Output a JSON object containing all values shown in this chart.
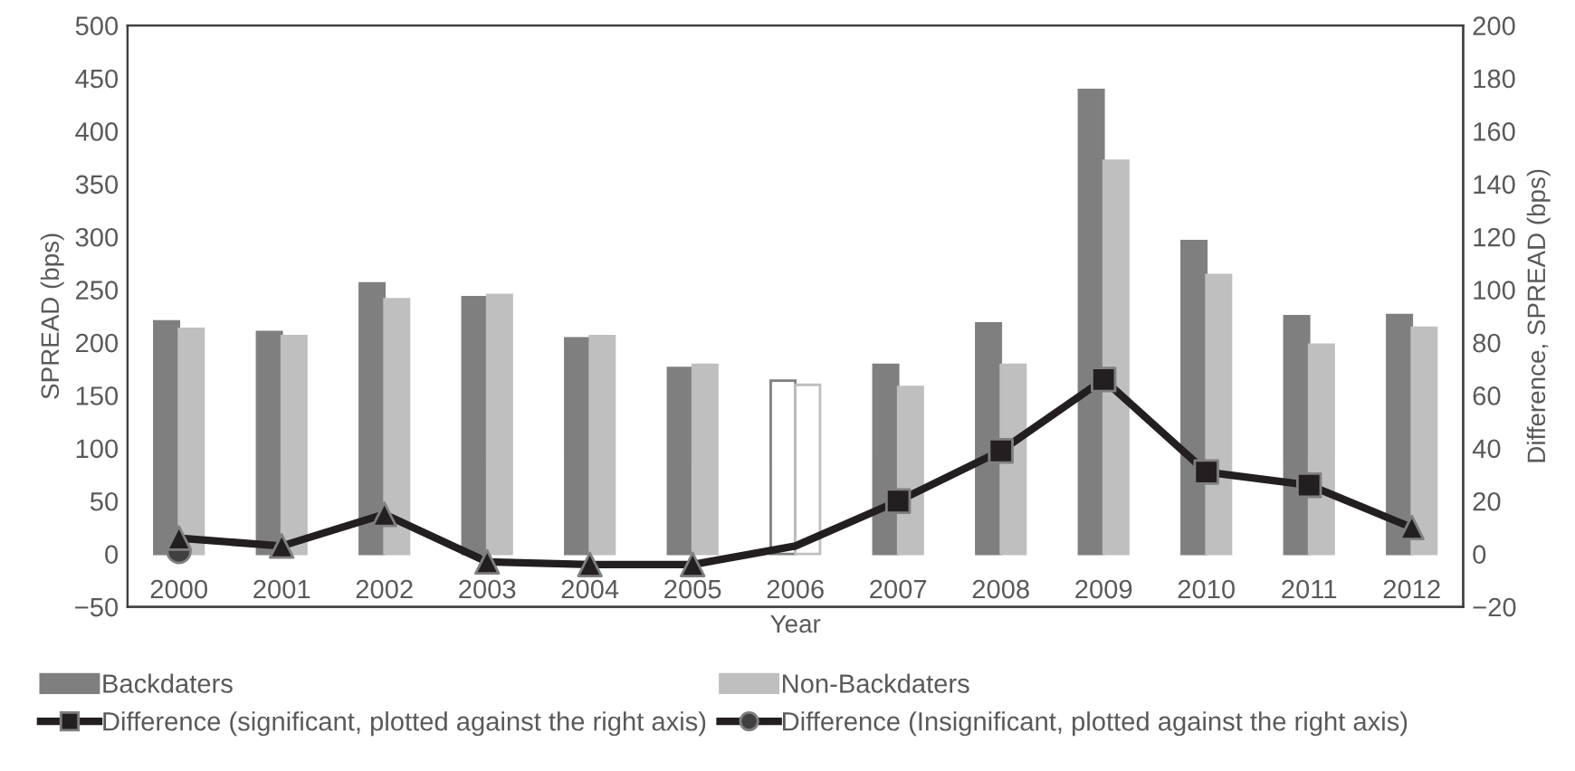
{
  "chart_data": {
    "type": "bar",
    "xlabel": "Year",
    "ylabel": "SPREAD (bps)",
    "y2label": "Difference, SPREAD (bps)",
    "categories": [
      "2000",
      "2001",
      "2002",
      "2003",
      "2004",
      "2005",
      "2006",
      "2007",
      "2008",
      "2009",
      "2010",
      "2011",
      "2012"
    ],
    "series": [
      {
        "name": "Backdaters",
        "color": "#7f7f7f",
        "colors": [
          "#7f7f7f",
          "#7f7f7f",
          "#7f7f7f",
          "#7f7f7f",
          "#7f7f7f",
          "#7f7f7f",
          "#ffffff",
          "#7f7f7f",
          "#7f7f7f",
          "#7f7f7f",
          "#7f7f7f",
          "#7f7f7f",
          "#7f7f7f"
        ],
        "values": [
          220,
          210,
          256,
          243,
          204,
          176,
          164,
          179,
          218,
          439,
          296,
          225,
          226
        ]
      },
      {
        "name": "Non-Backdaters",
        "color": "#bfbfbf",
        "colors": [
          "#bfbfbf",
          "#bfbfbf",
          "#bfbfbf",
          "#bfbfbf",
          "#bfbfbf",
          "#bfbfbf",
          "#ffffff",
          "#bfbfbf",
          "#bfbfbf",
          "#bfbfbf",
          "#bfbfbf",
          "#bfbfbf",
          "#bfbfbf"
        ],
        "values": [
          213,
          206,
          241,
          245,
          206,
          179,
          160,
          158,
          179,
          372,
          264,
          198,
          214
        ]
      },
      {
        "type": "line",
        "axis": "y2",
        "color": "#231f20",
        "marker": "none",
        "values": [
          6,
          3,
          15,
          -3,
          -4,
          -4,
          3,
          20,
          39,
          66,
          31,
          26,
          10
        ]
      },
      {
        "name": "Difference (Insignificant, plotted against the right axis)",
        "type": "scatter",
        "axis": "y2",
        "color": "#404040",
        "marker": "circle",
        "values": [
          1,
          null,
          null,
          null,
          null,
          null,
          null,
          null,
          null,
          null,
          null,
          null,
          null
        ]
      },
      {
        "type": "scatter",
        "axis": "y2",
        "color": "#231f20",
        "marker": "triangle",
        "values": [
          6,
          3,
          15,
          -3,
          -4,
          -4,
          null,
          null,
          null,
          null,
          null,
          null,
          10
        ]
      },
      {
        "name": "Difference (significant, plotted against the right axis)",
        "type": "scatter",
        "axis": "y2",
        "color": "#231f20",
        "marker": "square",
        "values": [
          null,
          null,
          null,
          null,
          null,
          null,
          null,
          20,
          39,
          66,
          31,
          26,
          null
        ]
      }
    ],
    "ylim": [
      -50,
      500
    ],
    "yticks": [
      {
        "value": -50,
        "label": "−50"
      },
      0,
      50,
      100,
      150,
      200,
      250,
      300,
      350,
      400,
      450,
      500
    ],
    "y2lim": [
      -20,
      200
    ],
    "y2ticks": [
      {
        "value": -20,
        "label": "−20"
      },
      0,
      20,
      40,
      60,
      80,
      100,
      120,
      140,
      160,
      180,
      200
    ],
    "grid": false,
    "legend": "bottom"
  }
}
